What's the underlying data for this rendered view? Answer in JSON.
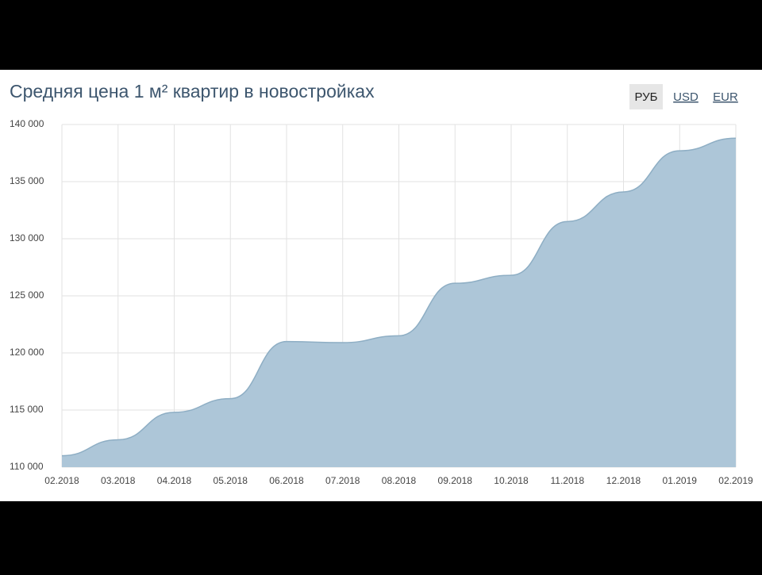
{
  "chart_data": {
    "type": "area",
    "title": "Средняя цена 1 м² квартир в новостройках",
    "categories": [
      "02.2018",
      "03.2018",
      "04.2018",
      "05.2018",
      "06.2018",
      "07.2018",
      "08.2018",
      "09.2018",
      "10.2018",
      "11.2018",
      "12.2018",
      "01.2019",
      "02.2019"
    ],
    "values": [
      111000,
      112400,
      114800,
      116000,
      121000,
      120900,
      121500,
      126100,
      126800,
      131500,
      134100,
      137700,
      138800
    ],
    "color": "#adc6d8",
    "line_color": "#8eaec4",
    "ylim": [
      110000,
      140000
    ],
    "yticks": [
      {
        "value": 110000,
        "label": "110 000"
      },
      {
        "value": 115000,
        "label": "115 000"
      },
      {
        "value": 120000,
        "label": "120 000"
      },
      {
        "value": 125000,
        "label": "125 000"
      },
      {
        "value": 130000,
        "label": "130 000"
      },
      {
        "value": 135000,
        "label": "135 000"
      },
      {
        "value": 140000,
        "label": "140 000"
      }
    ],
    "grid": true
  },
  "controls": {
    "currencies": [
      "РУБ",
      "USD",
      "EUR"
    ],
    "active_index": 0
  }
}
